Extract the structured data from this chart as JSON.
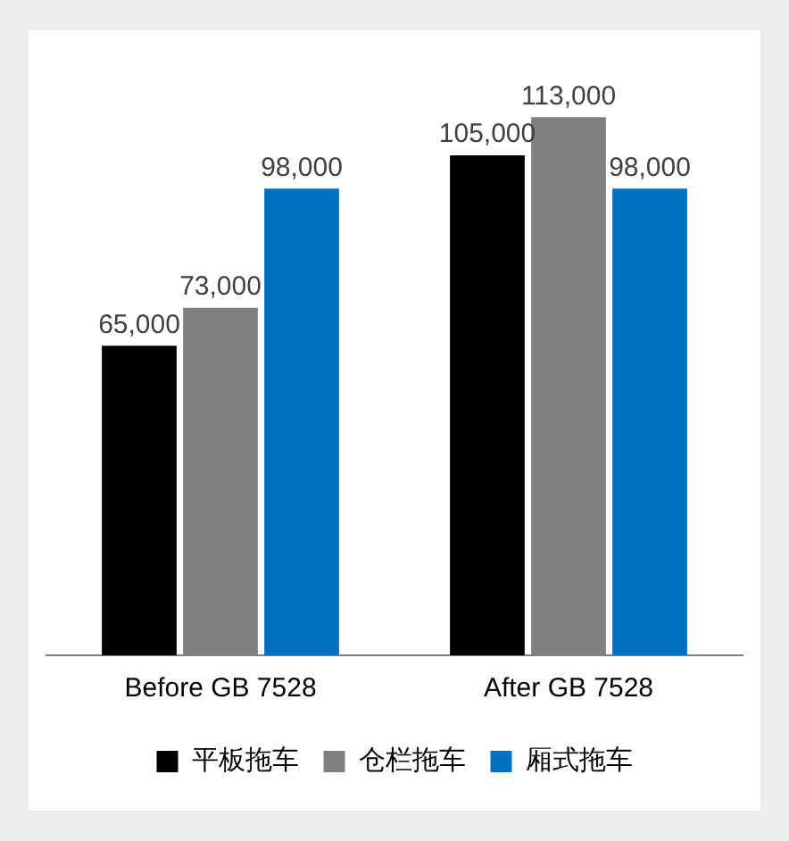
{
  "chart_data": {
    "type": "bar",
    "categories": [
      "Before GB 7528",
      "After GB 7528"
    ],
    "series": [
      {
        "name": "平板拖车",
        "color": "#000000",
        "values": [
          65000,
          105000
        ],
        "value_labels": [
          "65,000",
          "105,000"
        ]
      },
      {
        "name": "仓栏拖车",
        "color": "#808080",
        "values": [
          73000,
          113000
        ],
        "value_labels": [
          "73,000",
          "113,000"
        ]
      },
      {
        "name": "厢式拖车",
        "color": "#0070c0",
        "values": [
          98000,
          98000
        ],
        "value_labels": [
          "98,000",
          "98,000"
        ]
      }
    ],
    "legend": "bottom",
    "grid": false,
    "tick_labels": "x"
  }
}
